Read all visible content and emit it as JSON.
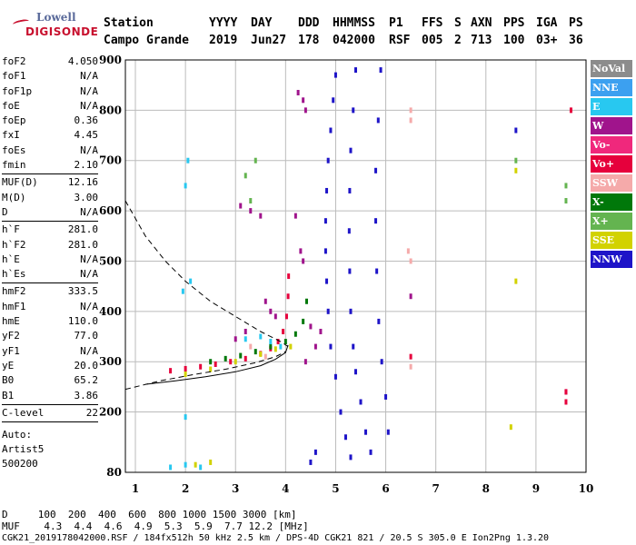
{
  "logo": {
    "line1": "Lowell",
    "line2": "DIGISONDE"
  },
  "header": {
    "row1": [
      "Station",
      "YYYY",
      "DAY",
      "DDD",
      "HHMMSS",
      "P1",
      "FFS",
      "S",
      "AXN",
      "PPS",
      "IGA",
      "PS"
    ],
    "row2": [
      "Campo Grande",
      "2019",
      "Jun27",
      "178",
      "042000",
      "RSF",
      "005",
      "2",
      "713",
      "100",
      "03+",
      "36"
    ]
  },
  "params": [
    {
      "k": "foF2",
      "v": "4.050"
    },
    {
      "k": "foF1",
      "v": "N/A"
    },
    {
      "k": "foF1p",
      "v": "N/A"
    },
    {
      "k": "foE",
      "v": "N/A"
    },
    {
      "k": "foEp",
      "v": "0.36"
    },
    {
      "k": "fxI",
      "v": "4.45"
    },
    {
      "k": "foEs",
      "v": "N/A"
    },
    {
      "k": "fmin",
      "v": "2.10"
    },
    {
      "sep": true
    },
    {
      "k": "MUF(D)",
      "v": "12.16"
    },
    {
      "k": "M(D)",
      "v": "3.00"
    },
    {
      "k": "D",
      "v": "N/A"
    },
    {
      "sep": true
    },
    {
      "k": "h`F",
      "v": "281.0"
    },
    {
      "k": "h`F2",
      "v": "281.0"
    },
    {
      "k": "h`E",
      "v": "N/A"
    },
    {
      "k": "h`Es",
      "v": "N/A"
    },
    {
      "sep": true
    },
    {
      "k": "hmF2",
      "v": "333.5"
    },
    {
      "k": "hmF1",
      "v": "N/A"
    },
    {
      "k": "hmE",
      "v": "110.0"
    },
    {
      "k": "yF2",
      "v": "77.0"
    },
    {
      "k": "yF1",
      "v": "N/A"
    },
    {
      "k": "yE",
      "v": "20.0"
    },
    {
      "k": "B0",
      "v": "65.2"
    },
    {
      "k": "B1",
      "v": "3.86"
    },
    {
      "sep": true
    },
    {
      "k": "C-level",
      "v": "22"
    },
    {
      "sep": true
    }
  ],
  "auto": [
    "Auto:",
    "Artist5",
    "500200"
  ],
  "legend": [
    {
      "label": "NoVal",
      "color": "#8c8c8c"
    },
    {
      "label": "NNE",
      "color": "#3ca0f0"
    },
    {
      "label": "E",
      "color": "#28c8f0"
    },
    {
      "label": "W",
      "color": "#a0148c"
    },
    {
      "label": "Vo-",
      "color": "#f0287c"
    },
    {
      "label": "Vo+",
      "color": "#e6003c"
    },
    {
      "label": "SSW",
      "color": "#f5aaaa"
    },
    {
      "label": "X-",
      "color": "#00780a"
    },
    {
      "label": "X+",
      "color": "#64b450"
    },
    {
      "label": "SSE",
      "color": "#d2d200"
    },
    {
      "label": "NNW",
      "color": "#1e14c8"
    }
  ],
  "footer": {
    "d_row": "D     100  200  400  600  800 1000 1500 3000 [km]",
    "muf_row": "MUF    4.3  4.4  4.6  4.9  5.3  5.9  7.7 12.2 [MHz]",
    "file_row": "CGK21_2019178042000.RSF / 184fx512h 50 kHz 2.5 km / DPS-4D CGK21 821 / 20.5 S 305.0 E Ion2Png 1.3.20"
  },
  "chart_data": {
    "type": "scatter",
    "xlabel": "",
    "ylabel": "",
    "xlim": [
      0.8,
      10
    ],
    "ylim": [
      80,
      900
    ],
    "x_ticks": [
      1,
      2,
      3,
      4,
      5,
      6,
      7,
      8,
      9,
      10
    ],
    "y_ticks": [
      80,
      200,
      300,
      400,
      500,
      600,
      700,
      800,
      900
    ],
    "grid": true,
    "traces": [
      {
        "name": "O-trace",
        "color": "#e6003c",
        "points": [
          [
            1.7,
            282
          ],
          [
            2.0,
            286
          ],
          [
            2.3,
            290
          ],
          [
            2.6,
            295
          ],
          [
            2.9,
            300
          ],
          [
            3.2,
            306
          ],
          [
            3.5,
            316
          ],
          [
            3.7,
            326
          ],
          [
            3.85,
            340
          ],
          [
            3.95,
            360
          ],
          [
            4.02,
            390
          ],
          [
            4.05,
            430
          ],
          [
            4.06,
            470
          ]
        ]
      },
      {
        "name": "X-trace",
        "color": "#00780a",
        "points": [
          [
            2.5,
            300
          ],
          [
            2.8,
            306
          ],
          [
            3.1,
            312
          ],
          [
            3.4,
            320
          ],
          [
            3.7,
            330
          ],
          [
            4.0,
            340
          ],
          [
            4.2,
            355
          ],
          [
            4.35,
            380
          ],
          [
            4.42,
            420
          ]
        ]
      },
      {
        "name": "W",
        "color": "#a0148c",
        "points": [
          [
            4.25,
            835
          ],
          [
            4.35,
            820
          ],
          [
            4.4,
            800
          ],
          [
            4.3,
            520
          ],
          [
            4.35,
            500
          ],
          [
            3.1,
            610
          ],
          [
            3.3,
            600
          ],
          [
            3.5,
            590
          ],
          [
            4.2,
            590
          ],
          [
            3.6,
            420
          ],
          [
            3.7,
            400
          ],
          [
            3.8,
            390
          ],
          [
            4.5,
            370
          ],
          [
            4.7,
            360
          ],
          [
            4.6,
            330
          ],
          [
            4.4,
            300
          ],
          [
            3.0,
            345
          ],
          [
            3.2,
            360
          ],
          [
            6.5,
            430
          ],
          [
            9.6,
            240
          ]
        ]
      },
      {
        "name": "NNW",
        "color": "#1e14c8",
        "points": [
          [
            5.0,
            870
          ],
          [
            4.95,
            820
          ],
          [
            4.9,
            760
          ],
          [
            4.85,
            700
          ],
          [
            4.82,
            640
          ],
          [
            4.8,
            580
          ],
          [
            4.8,
            520
          ],
          [
            4.82,
            460
          ],
          [
            4.85,
            400
          ],
          [
            4.9,
            330
          ],
          [
            5.0,
            270
          ],
          [
            5.1,
            200
          ],
          [
            5.2,
            150
          ],
          [
            5.3,
            110
          ],
          [
            5.4,
            880
          ],
          [
            5.35,
            800
          ],
          [
            5.3,
            720
          ],
          [
            5.28,
            640
          ],
          [
            5.27,
            560
          ],
          [
            5.28,
            480
          ],
          [
            5.3,
            400
          ],
          [
            5.35,
            330
          ],
          [
            5.4,
            280
          ],
          [
            5.5,
            220
          ],
          [
            5.6,
            160
          ],
          [
            5.7,
            120
          ],
          [
            5.9,
            880
          ],
          [
            5.85,
            780
          ],
          [
            5.8,
            680
          ],
          [
            5.8,
            580
          ],
          [
            5.82,
            480
          ],
          [
            5.86,
            380
          ],
          [
            5.92,
            300
          ],
          [
            6.0,
            230
          ],
          [
            6.05,
            160
          ],
          [
            4.6,
            120
          ],
          [
            4.5,
            100
          ],
          [
            8.6,
            760
          ]
        ]
      },
      {
        "name": "E",
        "color": "#28c8f0",
        "points": [
          [
            1.7,
            90
          ],
          [
            2.0,
            95
          ],
          [
            2.3,
            90
          ],
          [
            2.0,
            190
          ],
          [
            2.0,
            650
          ],
          [
            2.05,
            700
          ],
          [
            1.95,
            440
          ],
          [
            2.1,
            460
          ],
          [
            3.2,
            345
          ],
          [
            3.5,
            350
          ],
          [
            3.7,
            340
          ],
          [
            3.9,
            330
          ]
        ]
      },
      {
        "name": "SSW",
        "color": "#f5aaaa",
        "points": [
          [
            6.5,
            800
          ],
          [
            6.5,
            780
          ],
          [
            6.45,
            520
          ],
          [
            6.5,
            500
          ],
          [
            6.5,
            290
          ],
          [
            3.3,
            330
          ],
          [
            3.6,
            310
          ]
        ]
      },
      {
        "name": "SSE",
        "color": "#d2d200",
        "points": [
          [
            2.0,
            275
          ],
          [
            2.5,
            285
          ],
          [
            3.0,
            300
          ],
          [
            3.5,
            315
          ],
          [
            3.8,
            325
          ],
          [
            4.1,
            330
          ],
          [
            8.6,
            680
          ],
          [
            8.6,
            460
          ],
          [
            8.5,
            170
          ],
          [
            2.2,
            95
          ],
          [
            2.5,
            100
          ]
        ]
      },
      {
        "name": "X+",
        "color": "#64b450",
        "points": [
          [
            3.2,
            670
          ],
          [
            3.4,
            700
          ],
          [
            3.3,
            620
          ],
          [
            9.6,
            650
          ],
          [
            9.6,
            620
          ],
          [
            8.6,
            700
          ]
        ]
      },
      {
        "name": "Vo+",
        "color": "#e6003c",
        "points": [
          [
            9.7,
            800
          ],
          [
            9.6,
            240
          ],
          [
            9.6,
            220
          ],
          [
            6.5,
            310
          ]
        ]
      }
    ],
    "profile_curves": [
      {
        "name": "model-dashed",
        "points": [
          [
            0.8,
            620
          ],
          [
            1.2,
            550
          ],
          [
            1.6,
            500
          ],
          [
            2.0,
            460
          ],
          [
            2.5,
            420
          ],
          [
            3.0,
            390
          ],
          [
            3.5,
            360
          ],
          [
            3.9,
            340
          ],
          [
            4.05,
            330
          ]
        ]
      },
      {
        "name": "model-dashed-low",
        "points": [
          [
            0.8,
            245
          ],
          [
            1.5,
            262
          ],
          [
            2.2,
            275
          ],
          [
            2.8,
            285
          ],
          [
            3.4,
            298
          ],
          [
            3.8,
            310
          ],
          [
            4.0,
            320
          ]
        ]
      },
      {
        "name": "profile-solid",
        "points": [
          [
            1.2,
            255
          ],
          [
            1.8,
            262
          ],
          [
            2.4,
            270
          ],
          [
            3.0,
            280
          ],
          [
            3.5,
            292
          ],
          [
            3.8,
            305
          ],
          [
            4.0,
            318
          ],
          [
            4.05,
            333
          ]
        ]
      }
    ]
  }
}
